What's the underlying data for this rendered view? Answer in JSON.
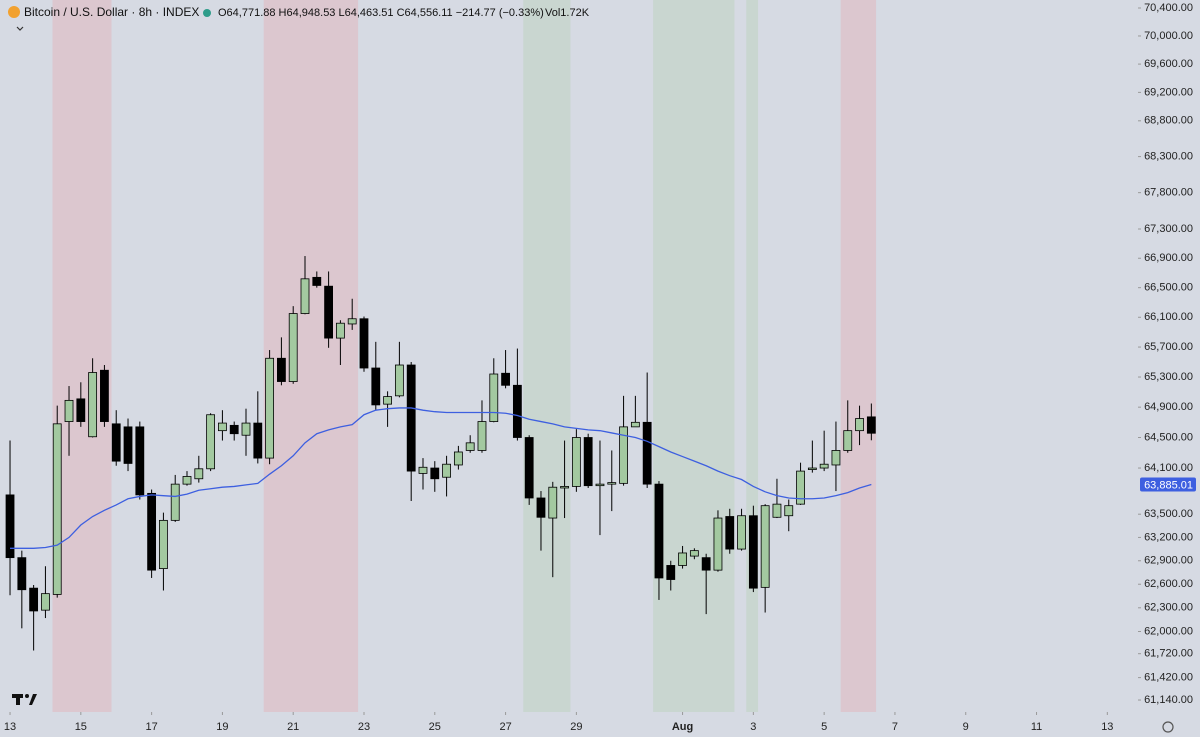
{
  "header": {
    "symbol": "Bitcoin / U.S. Dollar · 8h · INDEX",
    "ohlc": "O64,771.88 H64,948.53 L64,463.51 C64,556.11 −214.77 (−0.33%)",
    "volume": "Vol1.72K"
  },
  "chart_data": {
    "type": "candlestick",
    "log_scale": true,
    "up_color": "#a3c9a0",
    "down_color": "#000000",
    "open": [
      63750,
      62940,
      62550,
      62270,
      62470,
      64710,
      65010,
      64510,
      65390,
      64680,
      64640,
      64640,
      63770,
      62800,
      63420,
      63890,
      63960,
      64090,
      64590,
      64660,
      64530,
      64690,
      64230,
      65550,
      65240,
      66150,
      66640,
      66520,
      65820,
      66010,
      66080,
      65420,
      64940,
      65050,
      65460,
      64030,
      64100,
      63980,
      64140,
      64330,
      64330,
      64710,
      65350,
      65190,
      64500,
      63710,
      63450,
      63840,
      63860,
      64500,
      63870,
      63890,
      63900,
      64640,
      64700,
      63890,
      62840,
      62840,
      62960,
      62940,
      62780,
      63470,
      63050,
      63480,
      62560,
      63460,
      63480,
      63630,
      64080,
      64100,
      64140,
      64330,
      64590,
      64771.88
    ],
    "high": [
      64460,
      63030,
      62590,
      62830,
      64920,
      65180,
      65230,
      65550,
      65460,
      64860,
      64750,
      64710,
      63820,
      63520,
      64010,
      64060,
      64260,
      64820,
      64860,
      64710,
      64880,
      65110,
      65660,
      65830,
      66250,
      66930,
      66720,
      66720,
      66060,
      66350,
      66110,
      65770,
      65110,
      65770,
      65500,
      64230,
      64190,
      64260,
      64390,
      64530,
      64990,
      65550,
      65660,
      65680,
      64530,
      63800,
      63920,
      64460,
      64610,
      64550,
      64460,
      64330,
      65050,
      65050,
      65360,
      63930,
      62900,
      63090,
      63060,
      62990,
      63550,
      63570,
      63570,
      63610,
      63630,
      63960,
      63690,
      64170,
      64460,
      64590,
      64710,
      64990,
      64920,
      64948.53
    ],
    "low": [
      62460,
      62040,
      61760,
      62170,
      62430,
      64260,
      64640,
      64500,
      64640,
      64130,
      64060,
      63690,
      62680,
      62520,
      63400,
      63870,
      63910,
      64060,
      64460,
      64460,
      64260,
      64160,
      64150,
      65190,
      65210,
      66140,
      66500,
      65690,
      65460,
      65930,
      65370,
      64860,
      64640,
      65030,
      63670,
      63820,
      63790,
      63730,
      64080,
      64300,
      64300,
      64700,
      65150,
      64460,
      63620,
      63030,
      62690,
      63450,
      63790,
      63840,
      63230,
      63540,
      63870,
      64640,
      63840,
      62400,
      62520,
      62800,
      62920,
      62220,
      62760,
      62990,
      63030,
      62500,
      62240,
      63450,
      63280,
      63620,
      64040,
      64060,
      63800,
      64300,
      64400,
      64463.51
    ],
    "close": [
      62940,
      62530,
      62260,
      62480,
      64680,
      64990,
      64710,
      65360,
      64710,
      64190,
      64160,
      63750,
      62780,
      63420,
      63890,
      63990,
      64090,
      64800,
      64690,
      64550,
      64690,
      64230,
      65550,
      65240,
      66150,
      66620,
      66530,
      65820,
      66020,
      66080,
      65420,
      64930,
      65040,
      65460,
      64060,
      64110,
      63960,
      64150,
      64310,
      64430,
      64710,
      65340,
      65190,
      64500,
      63710,
      63460,
      63850,
      63860,
      64500,
      63870,
      63890,
      63910,
      64640,
      64700,
      63890,
      62680,
      62660,
      63000,
      63030,
      62780,
      63450,
      63050,
      63480,
      62550,
      63610,
      63630,
      63610,
      64060,
      64100,
      64150,
      64330,
      64590,
      64750,
      64556.11
    ],
    "ma": {
      "color": "#3d5fe0",
      "values": [
        63060,
        63060,
        63060,
        63070,
        63100,
        63200,
        63360,
        63470,
        63550,
        63620,
        63700,
        63730,
        63750,
        63740,
        63730,
        63760,
        63810,
        63830,
        63850,
        63860,
        63880,
        63900,
        64020,
        64130,
        64260,
        64430,
        64550,
        64600,
        64640,
        64670,
        64800,
        64860,
        64880,
        64890,
        64890,
        64860,
        64840,
        64830,
        64830,
        64830,
        64830,
        64830,
        64820,
        64790,
        64740,
        64710,
        64680,
        64640,
        64620,
        64600,
        64590,
        64560,
        64530,
        64500,
        64450,
        64380,
        64310,
        64250,
        64190,
        64130,
        64060,
        64000,
        63950,
        63860,
        63790,
        63740,
        63710,
        63700,
        63700,
        63710,
        63740,
        63780,
        63840,
        63885.01
      ]
    },
    "ma_label": {
      "value": 63885.01,
      "label": "63,885.01"
    },
    "bands": [
      {
        "start": 3.6,
        "end": 8.6,
        "color": "#dcc7cf"
      },
      {
        "start": 21.5,
        "end": 29.5,
        "color": "#dcc7cf"
      },
      {
        "start": 43.5,
        "end": 47.5,
        "color": "#c9d6d0"
      },
      {
        "start": 54.5,
        "end": 61.4,
        "color": "#c9d6d0"
      },
      {
        "start": 62.4,
        "end": 63.4,
        "color": "#c9d6d0"
      },
      {
        "start": 70.4,
        "end": 73.4,
        "color": "#dcc7cf"
      }
    ],
    "xlim": [
      -0.85,
      95.6
    ],
    "xticks": [
      {
        "value": 0,
        "label": "13"
      },
      {
        "value": 6,
        "label": "15"
      },
      {
        "value": 12,
        "label": "17"
      },
      {
        "value": 18,
        "label": "19"
      },
      {
        "value": 24,
        "label": "21"
      },
      {
        "value": 30,
        "label": "23"
      },
      {
        "value": 36,
        "label": "25"
      },
      {
        "value": 42,
        "label": "27"
      },
      {
        "value": 48,
        "label": "29"
      },
      {
        "value": 57,
        "label": "Aug"
      },
      {
        "value": 63,
        "label": "3"
      },
      {
        "value": 69,
        "label": "5"
      },
      {
        "value": 75,
        "label": "7"
      },
      {
        "value": 81,
        "label": "9"
      },
      {
        "value": 87,
        "label": "11"
      },
      {
        "value": 93,
        "label": "13"
      }
    ],
    "ylim": [
      60991,
      70515
    ],
    "yticks": [
      {
        "value": 70400,
        "label": "70,400.00"
      },
      {
        "value": 70000,
        "label": "70,000.00"
      },
      {
        "value": 69600,
        "label": "69,600.00"
      },
      {
        "value": 69200,
        "label": "69,200.00"
      },
      {
        "value": 68800,
        "label": "68,800.00"
      },
      {
        "value": 68300,
        "label": "68,300.00"
      },
      {
        "value": 67800,
        "label": "67,800.00"
      },
      {
        "value": 67300,
        "label": "67,300.00"
      },
      {
        "value": 66900,
        "label": "66,900.00"
      },
      {
        "value": 66500,
        "label": "66,500.00"
      },
      {
        "value": 66100,
        "label": "66,100.00"
      },
      {
        "value": 65700,
        "label": "65,700.00"
      },
      {
        "value": 65300,
        "label": "65,300.00"
      },
      {
        "value": 64900,
        "label": "64,900.00"
      },
      {
        "value": 64500,
        "label": "64,500.00"
      },
      {
        "value": 64100,
        "label": "64,100.00"
      },
      {
        "value": 63500,
        "label": "63,500.00"
      },
      {
        "value": 63200,
        "label": "63,200.00"
      },
      {
        "value": 62900,
        "label": "62,900.00"
      },
      {
        "value": 62600,
        "label": "62,600.00"
      },
      {
        "value": 62300,
        "label": "62,300.00"
      },
      {
        "value": 62000,
        "label": "62,000.00"
      },
      {
        "value": 61720,
        "label": "61,720.00"
      },
      {
        "value": 61420,
        "label": "61,420.00"
      },
      {
        "value": 61140,
        "label": "61,140.00"
      }
    ]
  }
}
